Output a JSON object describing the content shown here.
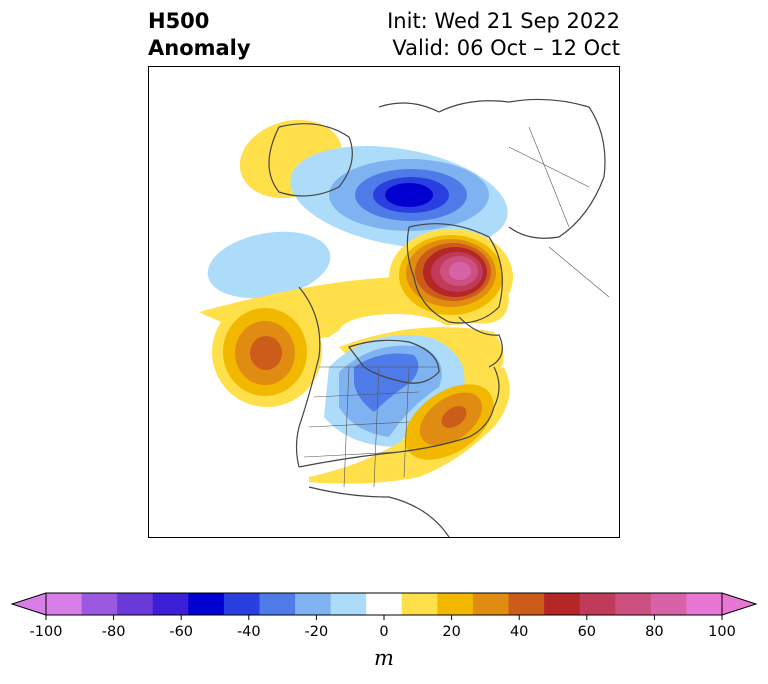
{
  "title": {
    "left_line1": "H500",
    "left_line2": "Anomaly",
    "right_line1": "Init: Wed 21 Sep 2022",
    "right_line2": "Valid: 06 Oct – 12 Oct"
  },
  "colorbar": {
    "unit": "m",
    "ticks": [
      "-100",
      "-80",
      "-60",
      "-40",
      "-20",
      "0",
      "20",
      "40",
      "60",
      "80",
      "100"
    ],
    "colors": [
      "#d77ee8",
      "#9b58e0",
      "#6a3ad8",
      "#3a1fd6",
      "#0000d0",
      "#2a3fe0",
      "#4f7be8",
      "#7eb2f0",
      "#acdcfa",
      "#ffffff",
      "#ffe04a",
      "#f2b800",
      "#e08c12",
      "#cc5c1a",
      "#b52626",
      "#c03a5a",
      "#cc5080",
      "#d862a8",
      "#e876d4"
    ],
    "under_color": "#d77ee8",
    "over_color": "#e876d4"
  }
}
